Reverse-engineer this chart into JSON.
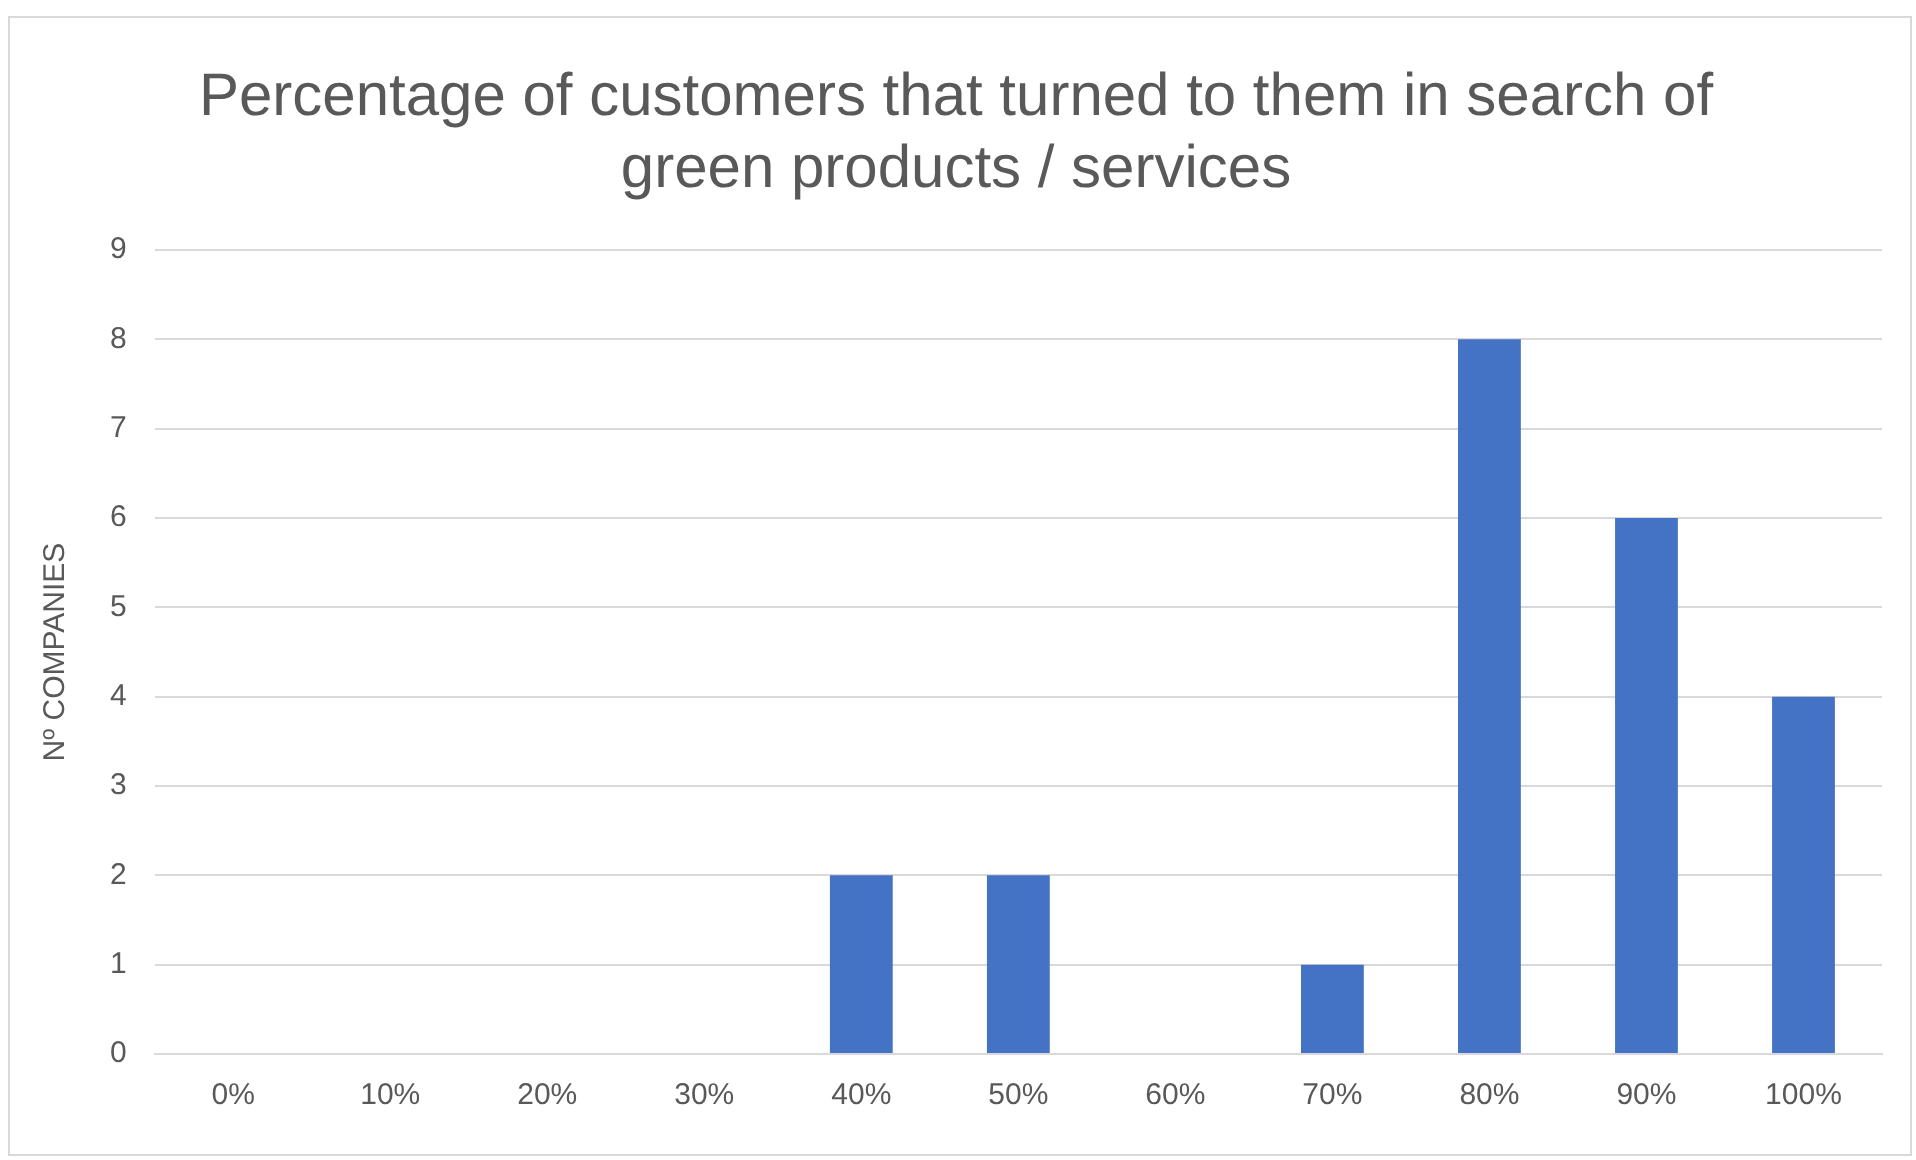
{
  "chart_data": {
    "type": "bar",
    "title": "Percentage of customers that turned to them in search of green products / services",
    "ylabel": "Nº COMPANIES",
    "categories": [
      "0%",
      "10%",
      "20%",
      "30%",
      "40%",
      "50%",
      "60%",
      "70%",
      "80%",
      "90%",
      "100%"
    ],
    "values": [
      0,
      0,
      0,
      0,
      2,
      2,
      0,
      1,
      8,
      6,
      4
    ],
    "color": "#4472c4",
    "ylim": [
      0,
      9
    ],
    "yticks": [
      0,
      1,
      2,
      3,
      4,
      5,
      6,
      7,
      8,
      9
    ],
    "grid": "y",
    "legend": false
  }
}
